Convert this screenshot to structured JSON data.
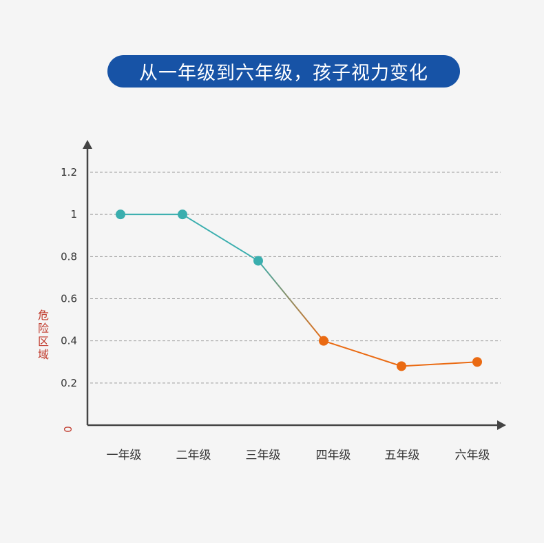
{
  "title": "从一年级到六年级，孩子视力变化",
  "chart_data": {
    "type": "line",
    "title": "从一年级到六年级，孩子视力变化",
    "categories": [
      "一年级",
      "二年级",
      "三年级",
      "四年级",
      "五年级",
      "六年级"
    ],
    "values": [
      1.0,
      1.0,
      0.78,
      0.4,
      0.28,
      0.3
    ],
    "y_ticks": [
      "1.2",
      "1",
      "0.8",
      "0.6",
      "0.4",
      "0.2",
      "0"
    ],
    "ylim": [
      0,
      1.4
    ],
    "grid": true,
    "annotations": [
      {
        "text": "危险区域",
        "range": [
          0,
          0.6
        ],
        "color": "#c0392b"
      }
    ],
    "colors": {
      "normal": "#3aaeae",
      "danger": "#ea6a12",
      "axis": "#444444",
      "grid": "#9a9a9a"
    }
  }
}
